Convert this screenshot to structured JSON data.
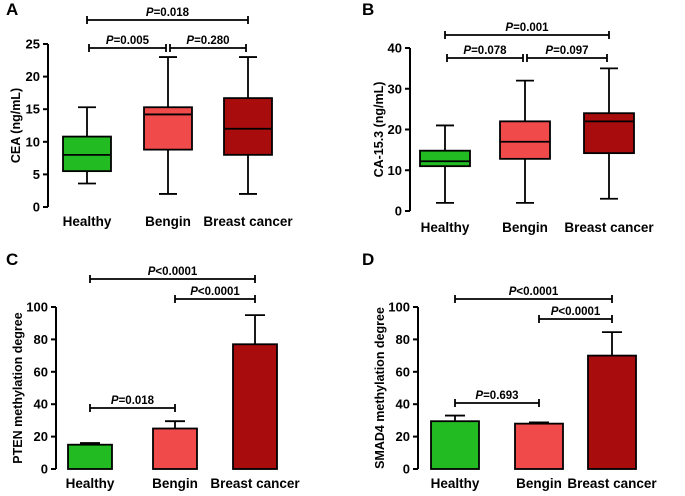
{
  "figure": {
    "colors": {
      "healthy": "#22bb22",
      "bengin": "#f04a4a",
      "cancer": "#a80c0c",
      "axis": "#000000"
    }
  },
  "chart_data": [
    {
      "panel": "A",
      "type": "box",
      "ylabel": "CEA (ng/mL)",
      "ylim": [
        0,
        25
      ],
      "yticks": [
        0,
        5,
        10,
        15,
        20,
        25
      ],
      "categories": [
        "Healthy",
        "Bengin",
        "Breast cancer"
      ],
      "boxes": [
        {
          "min": 3.6,
          "q1": 5.5,
          "median": 8.0,
          "q3": 10.8,
          "max": 15.3
        },
        {
          "min": 2.0,
          "q1": 8.8,
          "median": 14.2,
          "q3": 15.3,
          "max": 23.0
        },
        {
          "min": 2.0,
          "q1": 8.0,
          "median": 12.0,
          "q3": 16.7,
          "max": 23.0
        }
      ],
      "comparisons": [
        {
          "from": 0,
          "to": 1,
          "label": "=0.005",
          "level": 1
        },
        {
          "from": 1,
          "to": 2,
          "label": "=0.280",
          "level": 1
        },
        {
          "from": 0,
          "to": 2,
          "label": "=0.018",
          "level": 2
        }
      ]
    },
    {
      "panel": "B",
      "type": "box",
      "ylabel": "CA-15.3 (ng/mL)",
      "ylim": [
        0,
        40
      ],
      "yticks": [
        0,
        10,
        20,
        30,
        40
      ],
      "categories": [
        "Healthy",
        "Bengin",
        "Breast cancer"
      ],
      "boxes": [
        {
          "min": 2.0,
          "q1": 11.0,
          "median": 12.2,
          "q3": 14.8,
          "max": 21.0
        },
        {
          "min": 2.0,
          "q1": 12.8,
          "median": 17.0,
          "q3": 22.0,
          "max": 32.0
        },
        {
          "min": 3.0,
          "q1": 14.2,
          "median": 22.0,
          "q3": 24.0,
          "max": 35.0
        }
      ],
      "comparisons": [
        {
          "from": 0,
          "to": 1,
          "label": "=0.078",
          "level": 1
        },
        {
          "from": 1,
          "to": 2,
          "label": "=0.097",
          "level": 1
        },
        {
          "from": 0,
          "to": 2,
          "label": "=0.001",
          "level": 2
        }
      ]
    },
    {
      "panel": "C",
      "type": "bar",
      "ylabel": "PTEN methylation degree",
      "ylim": [
        0,
        100
      ],
      "yticks": [
        0,
        20,
        40,
        60,
        80,
        100
      ],
      "categories": [
        "Healthy",
        "Bengin",
        "Breast cancer"
      ],
      "values": [
        15,
        25,
        77
      ],
      "errors": [
        1,
        4.5,
        18
      ],
      "comparisons": [
        {
          "from": 0,
          "to": 1,
          "label": "=0.018",
          "level": 1
        },
        {
          "from": 1,
          "to": 2,
          "label": "<0.0001",
          "level": 2
        },
        {
          "from": 0,
          "to": 2,
          "label": "<0.0001",
          "level": 3
        }
      ]
    },
    {
      "panel": "D",
      "type": "bar",
      "ylabel": "SMAD4 methylation degree",
      "ylim": [
        0,
        100
      ],
      "yticks": [
        0,
        20,
        40,
        60,
        80,
        100
      ],
      "categories": [
        "Healthy",
        "Bengin",
        "Breast cancer"
      ],
      "values": [
        29.5,
        28,
        70
      ],
      "errors": [
        3.5,
        0.8,
        14.5
      ],
      "comparisons": [
        {
          "from": 0,
          "to": 1,
          "label": "=0.693",
          "level": 1
        },
        {
          "from": 1,
          "to": 2,
          "label": "<0.0001",
          "level": 2
        },
        {
          "from": 0,
          "to": 2,
          "label": "<0.0001",
          "level": 3
        }
      ]
    }
  ]
}
